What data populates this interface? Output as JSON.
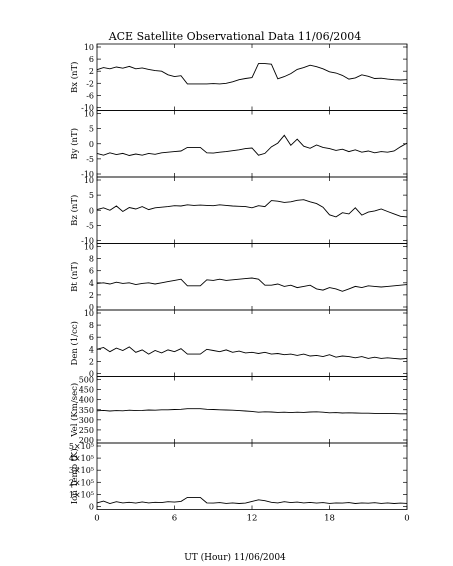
{
  "title": "ACE Satellite Observational Data   11/06/2004",
  "x_axis": {
    "label": "UT (Hour)  11/06/2004",
    "ticks": [
      "0",
      "6",
      "12",
      "18",
      "0"
    ]
  },
  "chart_data": [
    {
      "type": "line",
      "ylabel": "Bx (nT)",
      "ylim": [
        -10,
        10
      ],
      "yticks": [
        "10",
        "6",
        "2",
        "-2",
        "-6",
        "-10"
      ],
      "ytick_values": [
        10,
        6,
        2,
        -2,
        -6,
        -10
      ],
      "x": [
        0,
        0.5,
        1,
        1.5,
        2,
        2.5,
        3,
        3.5,
        4,
        4.5,
        5,
        5.5,
        6,
        6.5,
        7,
        7.5,
        8,
        8.5,
        9,
        9.5,
        10,
        10.5,
        11,
        11.5,
        12,
        12.5,
        13,
        13.5,
        14,
        14.5,
        15,
        15.5,
        16,
        16.5,
        17,
        17.5,
        18,
        18.5,
        19,
        19.5,
        20,
        20.5,
        21,
        21.5,
        22,
        22.5,
        23,
        23.5,
        24
      ],
      "y": [
        2.5,
        3.2,
        2.8,
        3.4,
        3.0,
        3.6,
        2.8,
        3.1,
        2.6,
        2.2,
        2.0,
        0.8,
        0.2,
        0.5,
        -2.2,
        -2.2,
        -2.2,
        -2.2,
        -2.1,
        -2.2,
        -2.0,
        -1.5,
        -0.8,
        -0.4,
        -0.1,
        4.5,
        4.5,
        4.3,
        -0.5,
        0.2,
        1.2,
        2.6,
        3.2,
        4.0,
        3.5,
        2.8,
        1.8,
        1.4,
        0.6,
        -0.6,
        -0.2,
        0.8,
        0.3,
        -0.4,
        -0.3,
        -0.6,
        -0.8,
        -0.9,
        -0.8
      ]
    },
    {
      "type": "line",
      "ylabel": "By (nT)",
      "ylim": [
        -10,
        10
      ],
      "yticks": [
        "10",
        "5",
        "0",
        "-5",
        "-10"
      ],
      "ytick_values": [
        10,
        5,
        0,
        -5,
        -10
      ],
      "x": [
        0,
        0.5,
        1,
        1.5,
        2,
        2.5,
        3,
        3.5,
        4,
        4.5,
        5,
        5.5,
        6,
        6.5,
        7,
        7.5,
        8,
        8.5,
        9,
        9.5,
        10,
        10.5,
        11,
        11.5,
        12,
        12.5,
        13,
        13.5,
        14,
        14.5,
        15,
        15.5,
        16,
        16.5,
        17,
        17.5,
        18,
        18.5,
        19,
        19.5,
        20,
        20.5,
        21,
        21.5,
        22,
        22.5,
        23,
        23.5,
        24
      ],
      "y": [
        -3.2,
        -3.8,
        -3.0,
        -3.6,
        -3.2,
        -3.9,
        -3.4,
        -3.8,
        -3.2,
        -3.5,
        -3.0,
        -2.8,
        -2.6,
        -2.4,
        -1.2,
        -1.2,
        -1.2,
        -3.0,
        -3.1,
        -2.8,
        -2.6,
        -2.3,
        -2.0,
        -1.6,
        -1.4,
        -3.8,
        -3.2,
        -1.0,
        0.2,
        2.8,
        -0.5,
        1.5,
        -0.8,
        -1.5,
        -0.4,
        -1.2,
        -1.6,
        -2.2,
        -1.8,
        -2.6,
        -2.0,
        -2.8,
        -2.4,
        -3.0,
        -2.6,
        -2.8,
        -2.4,
        -1.0,
        0.2
      ]
    },
    {
      "type": "line",
      "ylabel": "Bz (nT)",
      "ylim": [
        -10,
        10
      ],
      "yticks": [
        "10",
        "5",
        "0",
        "-5",
        "-10"
      ],
      "ytick_values": [
        10,
        5,
        0,
        -5,
        -10
      ],
      "x": [
        0,
        0.5,
        1,
        1.5,
        2,
        2.5,
        3,
        3.5,
        4,
        4.5,
        5,
        5.5,
        6,
        6.5,
        7,
        7.5,
        8,
        8.5,
        9,
        9.5,
        10,
        10.5,
        11,
        11.5,
        12,
        12.5,
        13,
        13.5,
        14,
        14.5,
        15,
        15.5,
        16,
        16.5,
        17,
        17.5,
        18,
        18.5,
        19,
        19.5,
        20,
        20.5,
        21,
        21.5,
        22,
        22.5,
        23,
        23.5,
        24
      ],
      "y": [
        0.2,
        0.8,
        0.0,
        1.4,
        -0.4,
        0.9,
        0.4,
        1.2,
        0.2,
        0.8,
        1.0,
        1.2,
        1.5,
        1.4,
        1.8,
        1.6,
        1.7,
        1.6,
        1.5,
        1.8,
        1.6,
        1.4,
        1.3,
        1.2,
        0.8,
        1.5,
        1.2,
        3.2,
        3.0,
        2.6,
        2.8,
        3.3,
        3.5,
        2.8,
        2.2,
        1.0,
        -1.5,
        -2.2,
        -0.8,
        -1.2,
        0.8,
        -1.6,
        -0.6,
        -0.2,
        0.4,
        -0.4,
        -1.2,
        -2.0,
        -2.2
      ]
    },
    {
      "type": "line",
      "ylabel": "Bt (nT)",
      "ylim": [
        0,
        10
      ],
      "yticks": [
        "10",
        "8",
        "6",
        "4",
        "2",
        "0"
      ],
      "ytick_values": [
        10,
        8,
        6,
        4,
        2,
        0
      ],
      "x": [
        0,
        0.5,
        1,
        1.5,
        2,
        2.5,
        3,
        3.5,
        4,
        4.5,
        5,
        5.5,
        6,
        6.5,
        7,
        7.5,
        8,
        8.5,
        9,
        9.5,
        10,
        10.5,
        11,
        11.5,
        12,
        12.5,
        13,
        13.5,
        14,
        14.5,
        15,
        15.5,
        16,
        16.5,
        17,
        17.5,
        18,
        18.5,
        19,
        19.5,
        20,
        20.5,
        21,
        21.5,
        22,
        22.5,
        23,
        23.5,
        24
      ],
      "y": [
        3.9,
        4.0,
        3.8,
        4.1,
        3.9,
        4.0,
        3.7,
        3.9,
        4.0,
        3.8,
        4.0,
        4.2,
        4.4,
        4.6,
        3.5,
        3.5,
        3.5,
        4.5,
        4.4,
        4.6,
        4.4,
        4.5,
        4.6,
        4.7,
        4.8,
        4.6,
        3.6,
        3.6,
        3.8,
        3.4,
        3.6,
        3.2,
        3.4,
        3.6,
        3.0,
        2.8,
        3.2,
        3.0,
        2.6,
        3.0,
        3.4,
        3.2,
        3.5,
        3.4,
        3.3,
        3.4,
        3.5,
        3.6,
        3.7
      ]
    },
    {
      "type": "line",
      "ylabel": "Den (1/cc)",
      "ylim": [
        0,
        10
      ],
      "yticks": [
        "10",
        "8",
        "6",
        "4",
        "2",
        "0"
      ],
      "ytick_values": [
        10,
        8,
        6,
        4,
        2,
        0
      ],
      "x": [
        0,
        0.5,
        1,
        1.5,
        2,
        2.5,
        3,
        3.5,
        4,
        4.5,
        5,
        5.5,
        6,
        6.5,
        7,
        7.5,
        8,
        8.5,
        9,
        9.5,
        10,
        10.5,
        11,
        11.5,
        12,
        12.5,
        13,
        13.5,
        14,
        14.5,
        15,
        15.5,
        16,
        16.5,
        17,
        17.5,
        18,
        18.5,
        19,
        19.5,
        20,
        20.5,
        21,
        21.5,
        22,
        22.5,
        23,
        23.5,
        24
      ],
      "y": [
        4.0,
        4.3,
        3.6,
        4.2,
        3.8,
        4.4,
        3.5,
        3.9,
        3.2,
        3.8,
        3.4,
        3.9,
        3.6,
        4.1,
        3.2,
        3.2,
        3.2,
        4.0,
        3.8,
        3.6,
        3.9,
        3.5,
        3.7,
        3.4,
        3.5,
        3.3,
        3.5,
        3.2,
        3.3,
        3.1,
        3.2,
        3.0,
        3.2,
        2.9,
        3.0,
        2.8,
        3.1,
        2.7,
        2.9,
        2.8,
        2.6,
        2.8,
        2.5,
        2.7,
        2.5,
        2.6,
        2.5,
        2.4,
        2.5
      ]
    },
    {
      "type": "line",
      "ylabel": "Vel (Km/sec)",
      "ylim": [
        200,
        500
      ],
      "yticks": [
        "500",
        "450",
        "400",
        "350",
        "300",
        "250",
        "200"
      ],
      "ytick_values": [
        500,
        450,
        400,
        350,
        300,
        250,
        200
      ],
      "x": [
        0,
        0.5,
        1,
        1.5,
        2,
        2.5,
        3,
        3.5,
        4,
        4.5,
        5,
        5.5,
        6,
        6.5,
        7,
        7.5,
        8,
        8.5,
        9,
        9.5,
        10,
        10.5,
        11,
        11.5,
        12,
        12.5,
        13,
        13.5,
        14,
        14.5,
        15,
        15.5,
        16,
        16.5,
        17,
        17.5,
        18,
        18.5,
        19,
        19.5,
        20,
        20.5,
        21,
        21.5,
        22,
        22.5,
        23,
        23.5,
        24
      ],
      "y": [
        345,
        347,
        344,
        346,
        345,
        348,
        346,
        347,
        349,
        348,
        350,
        350,
        351,
        352,
        355,
        355,
        355,
        352,
        351,
        350,
        349,
        348,
        346,
        344,
        342,
        338,
        340,
        339,
        337,
        338,
        336,
        338,
        337,
        339,
        340,
        338,
        335,
        336,
        334,
        335,
        334,
        333,
        333,
        332,
        332,
        331,
        331,
        330,
        330
      ]
    },
    {
      "type": "line",
      "ylabel": "Ion Temp (K)",
      "ylim": [
        0,
        500000
      ],
      "yticks": [
        "5×10⁵",
        "4×10⁵",
        "3×10⁵",
        "2×10⁵",
        "1×10⁵",
        "0"
      ],
      "ytick_values": [
        500000,
        400000,
        300000,
        200000,
        100000,
        0
      ],
      "x": [
        0,
        0.5,
        1,
        1.5,
        2,
        2.5,
        3,
        3.5,
        4,
        4.5,
        5,
        5.5,
        6,
        6.5,
        7,
        7.5,
        8,
        8.5,
        9,
        9.5,
        10,
        10.5,
        11,
        11.5,
        12,
        12.5,
        13,
        13.5,
        14,
        14.5,
        15,
        15.5,
        16,
        16.5,
        17,
        17.5,
        18,
        18.5,
        19,
        19.5,
        20,
        20.5,
        21,
        21.5,
        22,
        22.5,
        23,
        23.5,
        24
      ],
      "y": [
        30000,
        45000,
        25000,
        40000,
        30000,
        35000,
        28000,
        38000,
        30000,
        35000,
        32000,
        40000,
        36000,
        42000,
        75000,
        75000,
        75000,
        30000,
        28000,
        32000,
        26000,
        30000,
        25000,
        28000,
        42000,
        55000,
        48000,
        35000,
        30000,
        40000,
        32000,
        36000,
        30000,
        34000,
        28000,
        32000,
        26000,
        30000,
        28000,
        32000,
        25000,
        30000,
        27000,
        31000,
        26000,
        30000,
        25000,
        28000,
        26000
      ]
    }
  ]
}
